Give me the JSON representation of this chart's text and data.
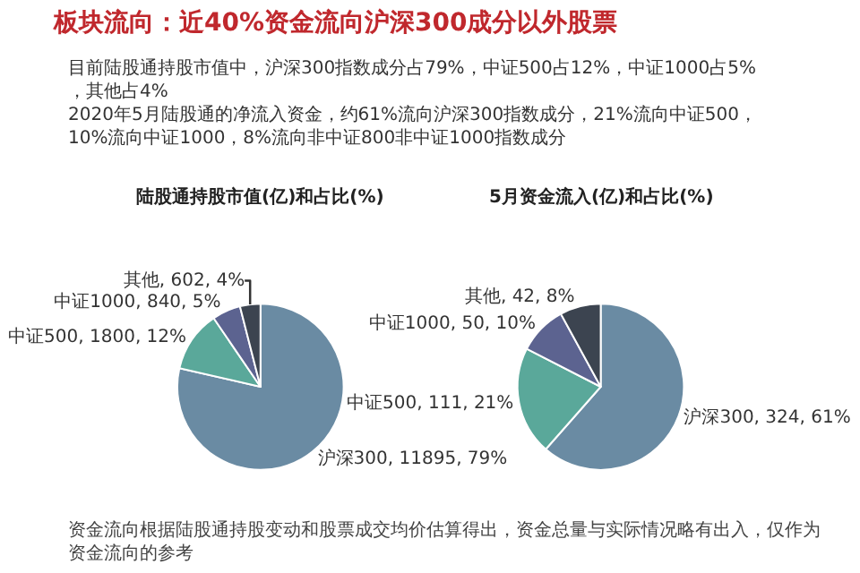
{
  "chart_data": [
    {
      "type": "pie",
      "title": "陆股通持股市值(亿)和占比(%)",
      "categories": [
        "沪深300",
        "中证500",
        "中证1000",
        "其他"
      ],
      "values": [
        11895,
        1800,
        840,
        602
      ],
      "colors": [
        "#6a8ba3",
        "#5aa89a",
        "#5c6390",
        "#3c4450"
      ],
      "value_labels": [
        "11895, 79%",
        "1800, 12%",
        "840, 5%",
        "602, 4%"
      ]
    },
    {
      "type": "pie",
      "title": "5月资金流入(亿)和占比(%)",
      "categories": [
        "沪深300",
        "中证500",
        "中证1000",
        "其他"
      ],
      "values": [
        324,
        111,
        50,
        42
      ],
      "colors": [
        "#6a8ba3",
        "#5aa89a",
        "#5c6390",
        "#3c4450"
      ],
      "value_labels": [
        "324, 61%",
        "111, 21%",
        "50, 10%",
        "42, 8%"
      ]
    },
    {
      "type": "other",
      "title": "板块流向：近40%资金流向沪深300成分以外股票",
      "subtitle": "目前陆股通持股市值中，沪深300指数成分占79%，中证500占12%，中证1000占5%，其他占4%\n2020年5月陆股通的净流入资金，约61%流向沪深300指数成分，21%流向中证500，10%流向中证1000，8%流向非中证800非中证1000指数成分",
      "annotations": [
        "资金流向根据陆股通持股变动和股票成交均价估算得出，资金总量与实际情况略有出入，仅作为资金流向的参考"
      ]
    }
  ]
}
